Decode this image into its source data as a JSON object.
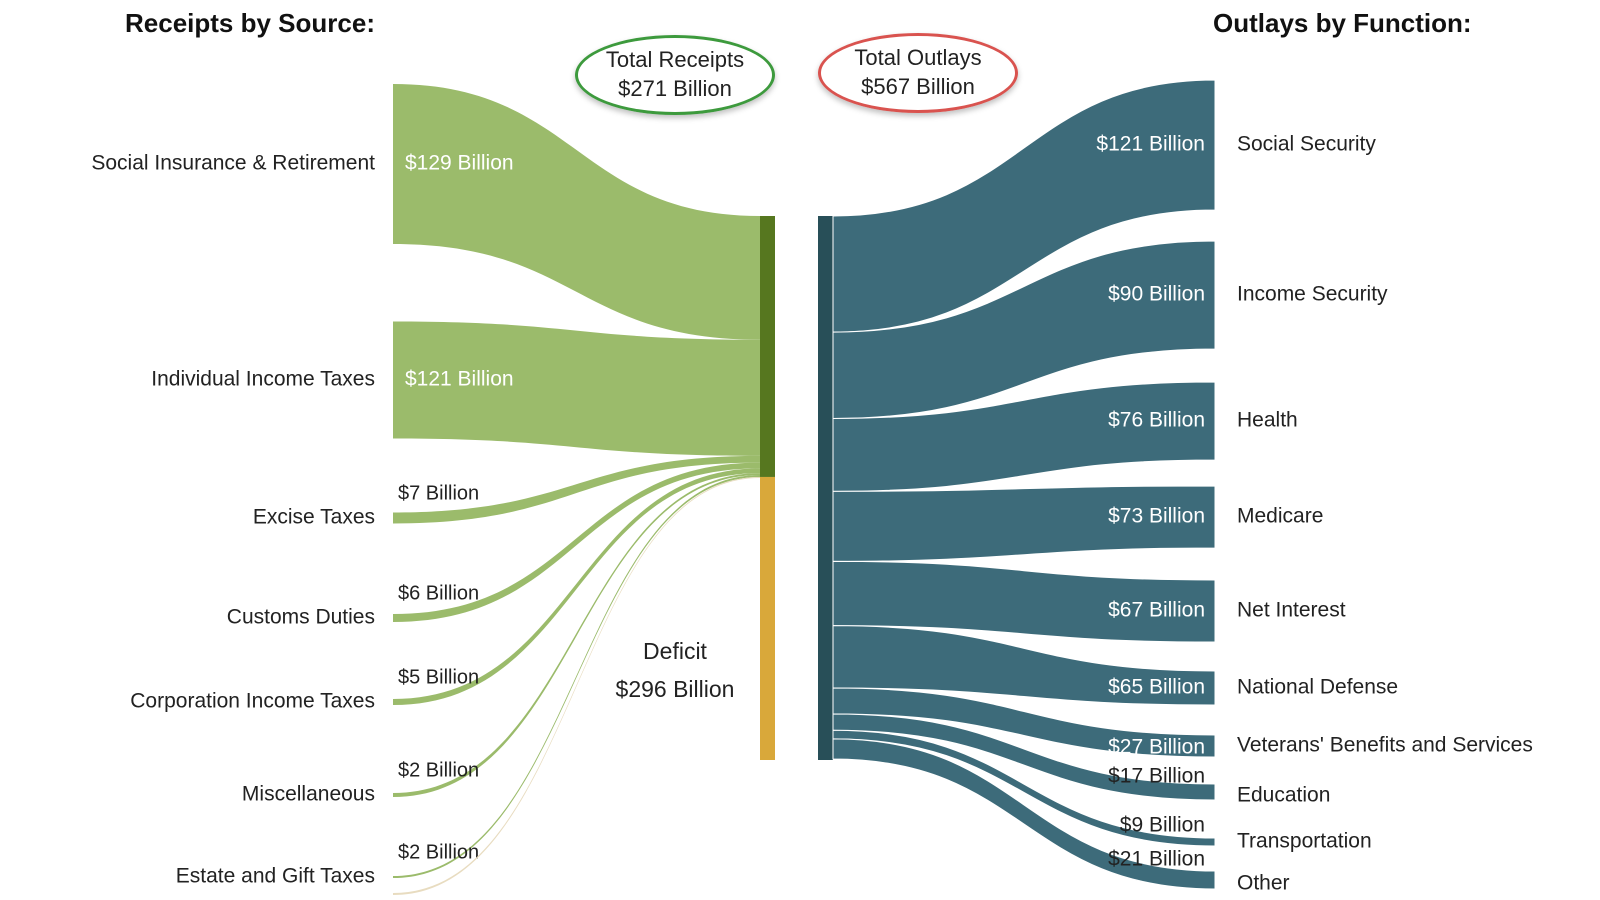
{
  "titles": {
    "receipts": "Receipts by Source:",
    "outlays": "Outlays by Function:"
  },
  "totals": {
    "receipts": {
      "line1": "Total Receipts",
      "line2": "$271 Billion",
      "color": "#3d9a3d"
    },
    "outlays": {
      "line1": "Total Outlays",
      "line2": "$567 Billion",
      "color": "#d9534f"
    }
  },
  "deficit": {
    "line1": "Deficit",
    "line2": "$296 Billion",
    "color": "#d9a83a"
  },
  "colors": {
    "receipt_flow": "#9bbb6b",
    "receipt_bar": "#56771f",
    "outlay_flow": "#3d6b7a",
    "outlay_bar": "#284f58",
    "deficit_flow": "#e8dcc0"
  },
  "chart_data": {
    "type": "sankey",
    "receipts": [
      {
        "name": "Social Insurance & Retirement",
        "value_label": "$129 Billion",
        "value": 129
      },
      {
        "name": "Individual Income Taxes",
        "value_label": "$121 Billion",
        "value": 121
      },
      {
        "name": "Excise Taxes",
        "value_label": "$7 Billion",
        "value": 7
      },
      {
        "name": "Customs Duties",
        "value_label": "$6 Billion",
        "value": 6
      },
      {
        "name": "Corporation Income Taxes",
        "value_label": "$5 Billion",
        "value": 5
      },
      {
        "name": "Miscellaneous",
        "value_label": "$2 Billion",
        "value": 2
      },
      {
        "name": "Estate and Gift Taxes",
        "value_label": "$2 Billion",
        "value": 2
      }
    ],
    "outlays": [
      {
        "name": "Social Security",
        "value_label": "$121 Billion",
        "value": 121
      },
      {
        "name": "Income Security",
        "value_label": "$90 Billion",
        "value": 90
      },
      {
        "name": "Health",
        "value_label": "$76 Billion",
        "value": 76
      },
      {
        "name": "Medicare",
        "value_label": "$73 Billion",
        "value": 73
      },
      {
        "name": "Net Interest",
        "value_label": "$67 Billion",
        "value": 67
      },
      {
        "name": "National Defense",
        "value_label": "$65 Billion",
        "value": 65
      },
      {
        "name": "Veterans' Benefits and Services",
        "value_label": "$27 Billion",
        "value": 27
      },
      {
        "name": "Education",
        "value_label": "$17 Billion",
        "value": 17
      },
      {
        "name": "Transportation",
        "value_label": "$9 Billion",
        "value": 9
      },
      {
        "name": "Other",
        "value_label": "$21 Billion",
        "value": 21
      }
    ],
    "total_receipts": 271,
    "total_outlays": 567,
    "deficit": 296
  }
}
